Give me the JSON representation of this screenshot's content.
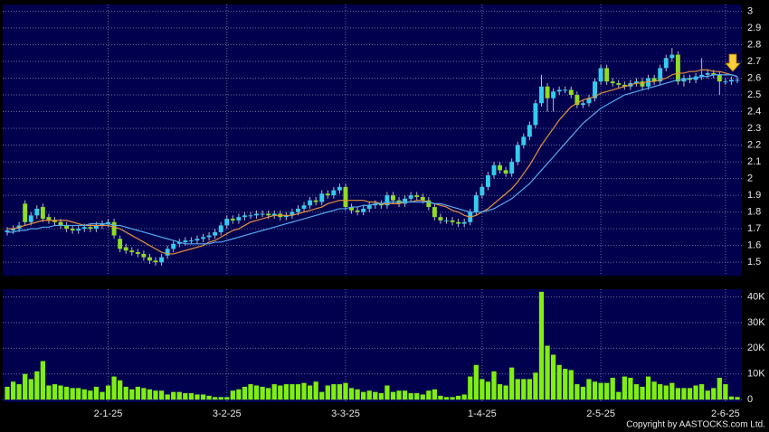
{
  "chart_data": {
    "type": "candlestick",
    "categories": [
      null,
      null,
      null,
      null,
      null,
      null,
      null,
      null,
      null,
      null,
      null,
      null,
      null,
      null,
      null,
      null,
      null,
      "2-1-25",
      null,
      null,
      null,
      null,
      null,
      null,
      null,
      null,
      null,
      null,
      null,
      null,
      null,
      null,
      null,
      null,
      null,
      null,
      null,
      "3-2-25",
      null,
      null,
      null,
      null,
      null,
      null,
      null,
      null,
      null,
      null,
      null,
      null,
      null,
      null,
      null,
      null,
      null,
      null,
      null,
      "3-3-25",
      null,
      null,
      null,
      null,
      null,
      null,
      null,
      null,
      null,
      null,
      null,
      null,
      null,
      null,
      null,
      null,
      null,
      null,
      null,
      null,
      null,
      null,
      "1-4-25",
      null,
      null,
      null,
      null,
      null,
      null,
      null,
      null,
      null,
      null,
      null,
      null,
      null,
      null,
      null,
      null,
      null,
      null,
      null,
      "2-5-25",
      null,
      null,
      null,
      null,
      null,
      null,
      null,
      null,
      null,
      null,
      null,
      null,
      null,
      null,
      null,
      null,
      null,
      null,
      null,
      null,
      "2-6-25",
      null,
      null
    ],
    "open": [
      1.68,
      1.69,
      1.7,
      1.85,
      1.74,
      1.78,
      1.83,
      1.77,
      1.75,
      1.74,
      1.72,
      1.7,
      1.69,
      1.7,
      1.71,
      1.7,
      1.72,
      1.73,
      1.74,
      1.64,
      1.59,
      1.57,
      1.56,
      1.55,
      1.53,
      1.51,
      1.5,
      1.54,
      1.58,
      1.61,
      1.62,
      1.63,
      1.63,
      1.64,
      1.65,
      1.66,
      1.68,
      1.72,
      1.76,
      1.75,
      1.77,
      1.78,
      1.78,
      1.79,
      1.79,
      1.78,
      1.79,
      1.77,
      1.78,
      1.8,
      1.82,
      1.84,
      1.87,
      1.86,
      1.91,
      1.9,
      1.93,
      1.95,
      1.83,
      1.81,
      1.8,
      1.82,
      1.84,
      1.85,
      1.84,
      1.9,
      1.87,
      1.85,
      1.88,
      1.9,
      1.89,
      1.87,
      1.83,
      1.77,
      1.75,
      1.75,
      1.74,
      1.73,
      1.74,
      1.8,
      1.9,
      1.95,
      2.02,
      2.08,
      2.05,
      2.03,
      2.1,
      2.2,
      2.25,
      2.32,
      2.45,
      2.55,
      2.48,
      2.52,
      2.53,
      2.53,
      2.5,
      2.44,
      2.45,
      2.48,
      2.58,
      2.66,
      2.58,
      2.57,
      2.56,
      2.55,
      2.57,
      2.58,
      2.55,
      2.6,
      2.58,
      2.66,
      2.72,
      2.74,
      2.58,
      2.6,
      2.59,
      2.61,
      2.62,
      2.63,
      2.62,
      2.58,
      2.58,
      2.59
    ],
    "high": [
      1.71,
      1.72,
      1.74,
      1.87,
      1.8,
      1.84,
      1.85,
      1.79,
      1.77,
      1.76,
      1.74,
      1.72,
      1.72,
      1.73,
      1.73,
      1.74,
      1.75,
      1.76,
      1.76,
      1.66,
      1.61,
      1.59,
      1.58,
      1.57,
      1.55,
      1.53,
      1.55,
      1.6,
      1.63,
      1.64,
      1.65,
      1.65,
      1.66,
      1.67,
      1.68,
      1.7,
      1.74,
      1.78,
      1.78,
      1.79,
      1.8,
      1.8,
      1.81,
      1.81,
      1.81,
      1.81,
      1.81,
      1.8,
      1.82,
      1.84,
      1.86,
      1.89,
      1.89,
      1.93,
      1.93,
      1.95,
      1.97,
      1.97,
      1.85,
      1.83,
      1.84,
      1.86,
      1.87,
      1.87,
      1.92,
      1.92,
      1.89,
      1.9,
      1.92,
      1.92,
      1.91,
      1.89,
      1.85,
      1.79,
      1.77,
      1.77,
      1.76,
      1.76,
      1.82,
      1.92,
      1.97,
      2.04,
      2.1,
      2.1,
      2.07,
      2.12,
      2.22,
      2.27,
      2.34,
      2.47,
      2.62,
      2.57,
      2.54,
      2.55,
      2.55,
      2.55,
      2.52,
      2.47,
      2.5,
      2.6,
      2.68,
      2.68,
      2.6,
      2.59,
      2.58,
      2.59,
      2.6,
      2.6,
      2.62,
      2.62,
      2.68,
      2.74,
      2.78,
      2.76,
      2.62,
      2.62,
      2.63,
      2.72,
      2.65,
      2.65,
      2.64,
      2.6,
      2.61,
      2.61
    ],
    "low": [
      1.66,
      1.67,
      1.68,
      1.72,
      1.72,
      1.76,
      1.74,
      1.73,
      1.72,
      1.7,
      1.68,
      1.67,
      1.67,
      1.68,
      1.68,
      1.68,
      1.7,
      1.71,
      1.64,
      1.56,
      1.55,
      1.54,
      1.53,
      1.51,
      1.49,
      1.48,
      1.48,
      1.52,
      1.56,
      1.59,
      1.6,
      1.61,
      1.61,
      1.62,
      1.63,
      1.64,
      1.66,
      1.7,
      1.73,
      1.73,
      1.75,
      1.76,
      1.76,
      1.77,
      1.76,
      1.76,
      1.75,
      1.75,
      1.76,
      1.78,
      1.8,
      1.82,
      1.84,
      1.84,
      1.88,
      1.88,
      1.91,
      1.81,
      1.79,
      1.78,
      1.78,
      1.8,
      1.82,
      1.82,
      1.82,
      1.85,
      1.83,
      1.83,
      1.86,
      1.87,
      1.85,
      1.81,
      1.75,
      1.73,
      1.73,
      1.72,
      1.71,
      1.71,
      1.72,
      1.78,
      1.88,
      1.93,
      2.0,
      2.03,
      2.01,
      2.01,
      2.08,
      2.18,
      2.23,
      2.3,
      2.43,
      2.4,
      2.4,
      2.5,
      2.51,
      2.48,
      2.42,
      2.42,
      2.43,
      2.46,
      2.56,
      2.56,
      2.55,
      2.54,
      2.53,
      2.53,
      2.55,
      2.53,
      2.53,
      2.56,
      2.56,
      2.64,
      2.7,
      2.56,
      2.55,
      2.57,
      2.57,
      2.59,
      2.6,
      2.6,
      2.5,
      2.56,
      2.56,
      2.57
    ],
    "close": [
      1.69,
      1.7,
      1.72,
      1.74,
      1.78,
      1.82,
      1.76,
      1.75,
      1.74,
      1.72,
      1.7,
      1.69,
      1.7,
      1.71,
      1.7,
      1.72,
      1.73,
      1.74,
      1.66,
      1.58,
      1.57,
      1.56,
      1.55,
      1.53,
      1.51,
      1.5,
      1.53,
      1.58,
      1.61,
      1.62,
      1.63,
      1.63,
      1.64,
      1.65,
      1.66,
      1.68,
      1.72,
      1.76,
      1.75,
      1.77,
      1.78,
      1.78,
      1.79,
      1.79,
      1.78,
      1.79,
      1.77,
      1.78,
      1.8,
      1.82,
      1.84,
      1.87,
      1.86,
      1.91,
      1.9,
      1.93,
      1.95,
      1.83,
      1.81,
      1.8,
      1.82,
      1.84,
      1.85,
      1.84,
      1.9,
      1.87,
      1.85,
      1.88,
      1.9,
      1.89,
      1.87,
      1.83,
      1.77,
      1.75,
      1.75,
      1.74,
      1.73,
      1.74,
      1.8,
      1.9,
      1.95,
      2.02,
      2.08,
      2.05,
      2.03,
      2.1,
      2.2,
      2.25,
      2.32,
      2.45,
      2.55,
      2.48,
      2.52,
      2.53,
      2.53,
      2.5,
      2.44,
      2.45,
      2.48,
      2.58,
      2.66,
      2.58,
      2.57,
      2.56,
      2.55,
      2.57,
      2.58,
      2.55,
      2.6,
      2.58,
      2.66,
      2.72,
      2.74,
      2.58,
      2.6,
      2.59,
      2.61,
      2.62,
      2.63,
      2.62,
      2.58,
      2.58,
      2.59,
      2.59
    ],
    "up_color": "#33ccee",
    "down_color": "#8fdc22",
    "series": [
      {
        "color": "#e8923a",
        "values": [
          1.7,
          1.7,
          1.71,
          1.72,
          1.73,
          1.74,
          1.75,
          1.75,
          1.75,
          1.75,
          1.75,
          1.74,
          1.73,
          1.72,
          1.72,
          1.72,
          1.72,
          1.72,
          1.71,
          1.7,
          1.68,
          1.66,
          1.64,
          1.62,
          1.6,
          1.58,
          1.56,
          1.55,
          1.55,
          1.56,
          1.57,
          1.58,
          1.59,
          1.6,
          1.62,
          1.63,
          1.65,
          1.67,
          1.69,
          1.7,
          1.72,
          1.74,
          1.75,
          1.76,
          1.77,
          1.78,
          1.78,
          1.78,
          1.78,
          1.79,
          1.8,
          1.81,
          1.82,
          1.83,
          1.85,
          1.86,
          1.87,
          1.87,
          1.87,
          1.87,
          1.87,
          1.86,
          1.86,
          1.85,
          1.85,
          1.85,
          1.85,
          1.86,
          1.86,
          1.87,
          1.87,
          1.86,
          1.85,
          1.84,
          1.83,
          1.81,
          1.8,
          1.78,
          1.77,
          1.78,
          1.8,
          1.82,
          1.85,
          1.88,
          1.91,
          1.94,
          1.98,
          2.03,
          2.08,
          2.14,
          2.2,
          2.25,
          2.3,
          2.35,
          2.39,
          2.43,
          2.45,
          2.47,
          2.48,
          2.49,
          2.51,
          2.52,
          2.53,
          2.54,
          2.55,
          2.56,
          2.57,
          2.57,
          2.58,
          2.58,
          2.59,
          2.6,
          2.62,
          2.63,
          2.63,
          2.64,
          2.64,
          2.65,
          2.65,
          2.64,
          2.64,
          2.63,
          2.62,
          2.61
        ]
      },
      {
        "color": "#55aaee",
        "values": [
          1.68,
          1.68,
          1.69,
          1.69,
          1.7,
          1.7,
          1.71,
          1.71,
          1.72,
          1.72,
          1.72,
          1.72,
          1.72,
          1.72,
          1.73,
          1.73,
          1.73,
          1.73,
          1.72,
          1.72,
          1.71,
          1.7,
          1.69,
          1.68,
          1.67,
          1.66,
          1.65,
          1.64,
          1.63,
          1.62,
          1.61,
          1.61,
          1.61,
          1.61,
          1.61,
          1.62,
          1.62,
          1.63,
          1.64,
          1.65,
          1.66,
          1.67,
          1.68,
          1.69,
          1.7,
          1.71,
          1.72,
          1.73,
          1.74,
          1.75,
          1.76,
          1.77,
          1.78,
          1.79,
          1.8,
          1.81,
          1.82,
          1.82,
          1.83,
          1.83,
          1.84,
          1.84,
          1.85,
          1.85,
          1.86,
          1.86,
          1.86,
          1.86,
          1.86,
          1.86,
          1.86,
          1.86,
          1.85,
          1.85,
          1.84,
          1.83,
          1.82,
          1.81,
          1.8,
          1.8,
          1.8,
          1.81,
          1.82,
          1.84,
          1.86,
          1.88,
          1.91,
          1.94,
          1.97,
          2.01,
          2.05,
          2.09,
          2.13,
          2.17,
          2.21,
          2.25,
          2.29,
          2.33,
          2.36,
          2.39,
          2.42,
          2.44,
          2.46,
          2.48,
          2.5,
          2.51,
          2.52,
          2.53,
          2.54,
          2.55,
          2.56,
          2.57,
          2.58,
          2.59,
          2.59,
          2.6,
          2.6,
          2.61,
          2.61,
          2.62,
          2.62,
          2.62,
          2.62,
          2.61
        ]
      }
    ],
    "ylim": [
      1.42,
      3.04
    ],
    "yticks": [
      1.5,
      1.6,
      1.7,
      1.8,
      1.9,
      2,
      2.1,
      2.2,
      2.3,
      2.4,
      2.5,
      2.6,
      2.7,
      2.8,
      2.9,
      3
    ],
    "grid": true,
    "volume": {
      "color": "#7fee10",
      "values": [
        5000,
        7000,
        6000,
        10000,
        8000,
        11000,
        15000,
        5500,
        6000,
        5500,
        5000,
        4500,
        4500,
        4000,
        3500,
        5000,
        3000,
        5500,
        9000,
        7500,
        5000,
        4000,
        5000,
        4500,
        4000,
        3500,
        3500,
        2000,
        3000,
        3000,
        2500,
        2500,
        2000,
        2000,
        1500,
        1000,
        1000,
        1000,
        3500,
        4000,
        5000,
        6000,
        5500,
        5000,
        4500,
        6000,
        5500,
        6000,
        6000,
        6000,
        6500,
        5500,
        7000,
        3000,
        5500,
        6000,
        6000,
        6500,
        4500,
        4000,
        3000,
        3500,
        3000,
        2500,
        5500,
        3000,
        3500,
        3500,
        2500,
        2500,
        2000,
        3500,
        4000,
        1500,
        1000,
        1000,
        1500,
        2000,
        9000,
        13500,
        8000,
        7000,
        11000,
        6000,
        5500,
        12500,
        8000,
        8000,
        8000,
        10500,
        42000,
        21000,
        17500,
        13500,
        12000,
        11500,
        6000,
        5000,
        8000,
        7000,
        6500,
        6500,
        8500,
        3000,
        9000,
        8500,
        6000,
        5000,
        9000,
        7000,
        6000,
        5500,
        6500,
        4500,
        4500,
        4500,
        5500,
        6000,
        3500,
        4500,
        8500,
        6000,
        1200,
        1000
      ],
      "ylim": [
        -1000,
        43000
      ],
      "yticks": [
        0,
        {
          "value": 10000,
          "label": "10K"
        },
        {
          "value": 20000,
          "label": "20K"
        },
        {
          "value": 30000,
          "label": "30K"
        },
        {
          "value": 40000,
          "label": "40K"
        }
      ]
    },
    "copyright": "Copyright by AASTOCKS.com Ltd."
  }
}
